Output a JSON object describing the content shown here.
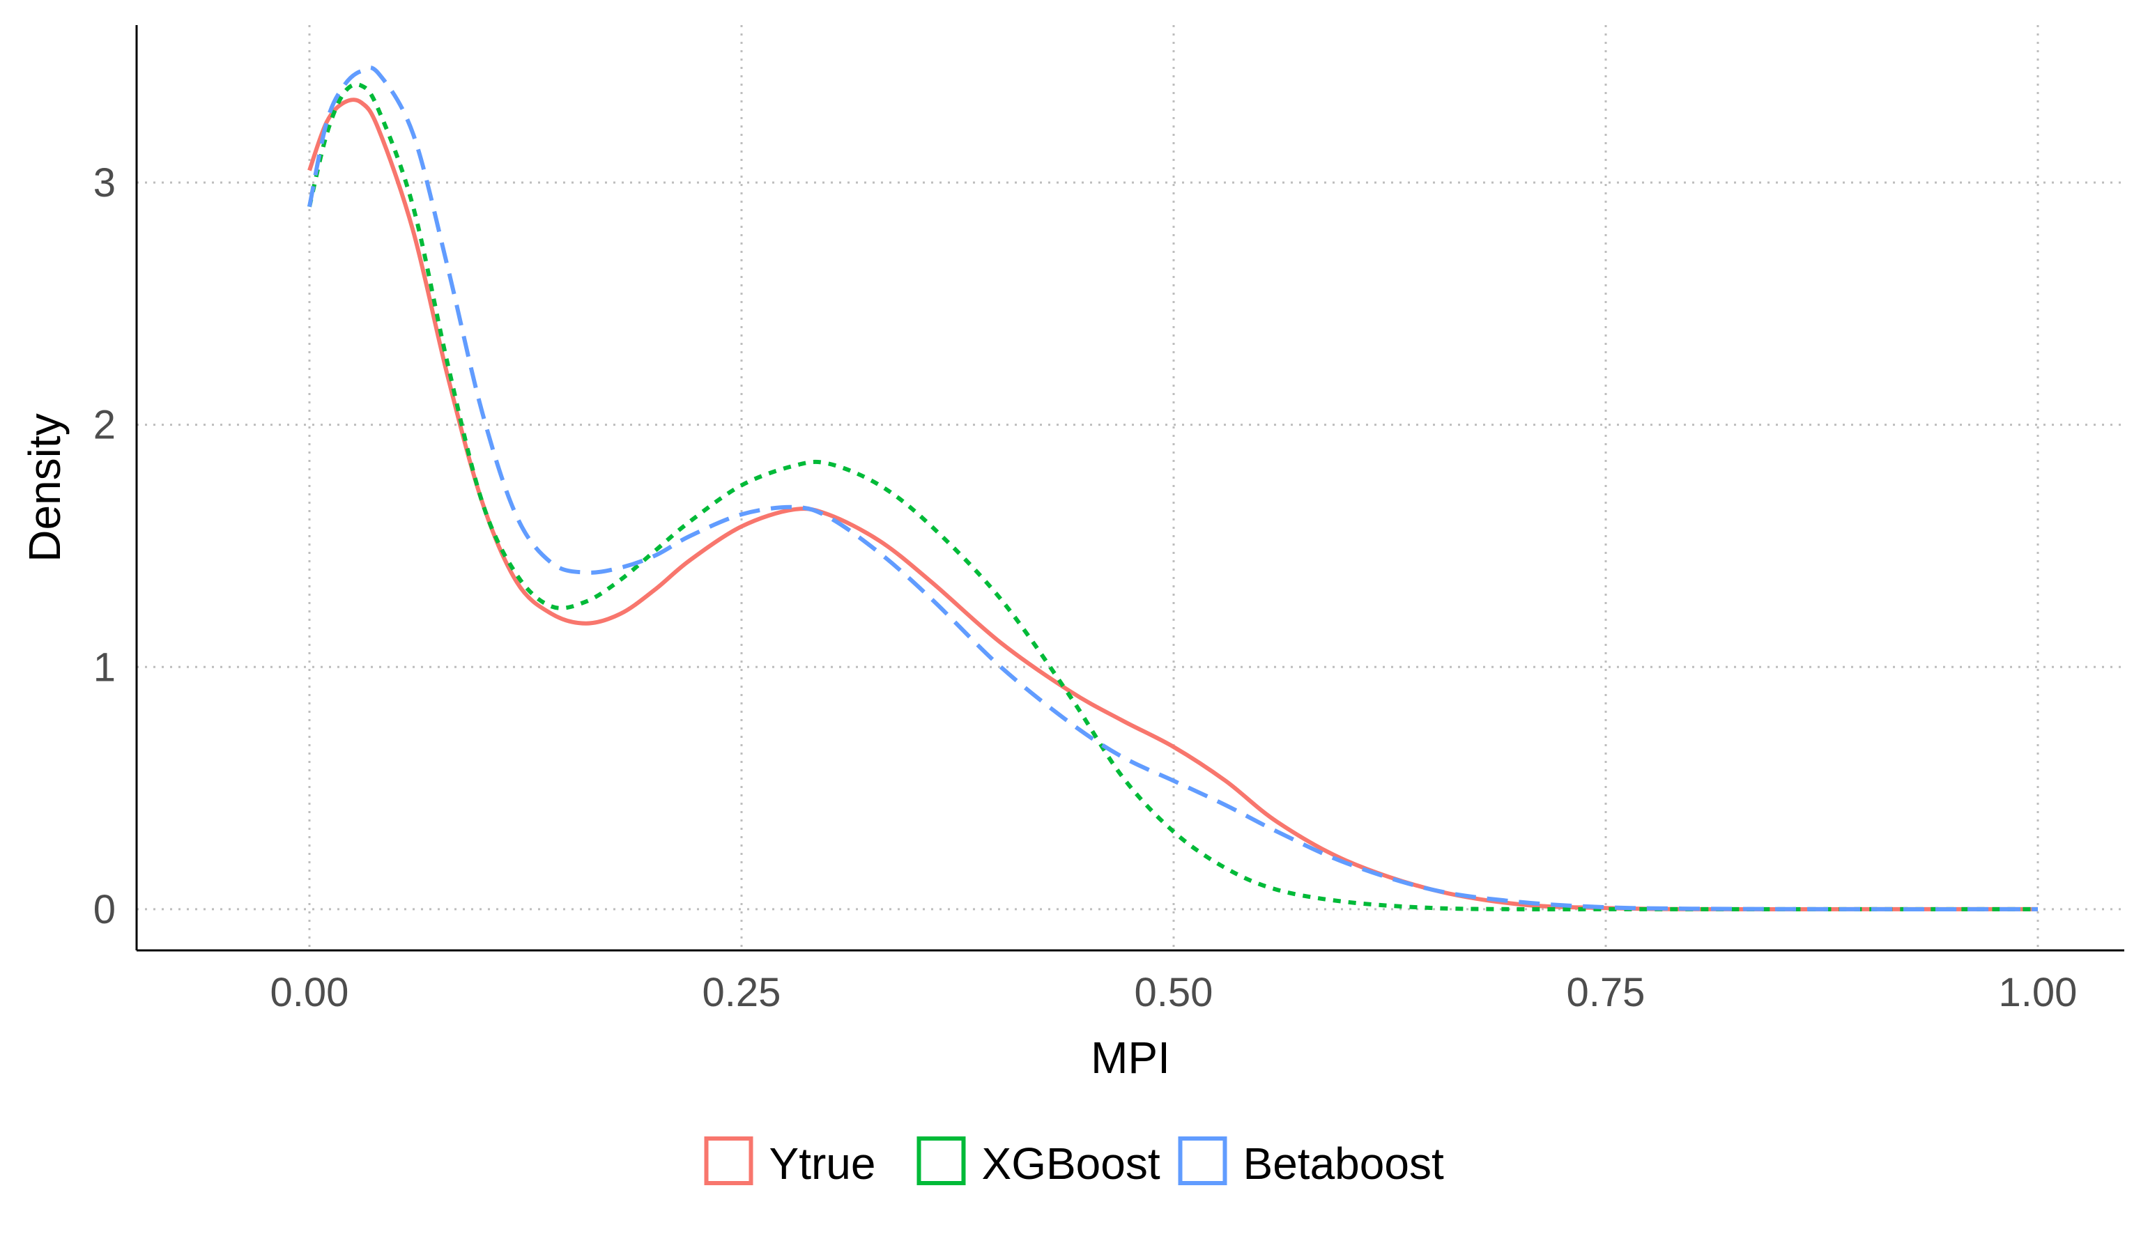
{
  "chart_data": {
    "type": "line",
    "title": "",
    "xlabel": "MPI",
    "ylabel": "Density",
    "xlim": [
      -0.1,
      1.05
    ],
    "ylim": [
      -0.17,
      3.65
    ],
    "xticks": [
      0.0,
      0.25,
      0.5,
      0.75,
      1.0
    ],
    "xtick_labels": [
      "0.00",
      "0.25",
      "0.50",
      "0.75",
      "1.00"
    ],
    "yticks": [
      0,
      1,
      2,
      3
    ],
    "ytick_labels": [
      "0",
      "1",
      "2",
      "3"
    ],
    "grid": true,
    "legend_position": "bottom",
    "x": [
      0.0,
      0.01,
      0.02,
      0.03,
      0.04,
      0.06,
      0.08,
      0.1,
      0.12,
      0.14,
      0.16,
      0.18,
      0.2,
      0.22,
      0.25,
      0.28,
      0.3,
      0.33,
      0.36,
      0.4,
      0.44,
      0.47,
      0.5,
      0.53,
      0.56,
      0.6,
      0.65,
      0.7,
      0.75,
      0.8,
      0.9,
      1.0
    ],
    "series": [
      {
        "name": "Ytrue",
        "color": "#F8766D",
        "dash": "solid",
        "values": [
          3.05,
          3.25,
          3.33,
          3.33,
          3.22,
          2.8,
          2.2,
          1.68,
          1.35,
          1.22,
          1.18,
          1.22,
          1.32,
          1.44,
          1.58,
          1.65,
          1.63,
          1.52,
          1.35,
          1.1,
          0.9,
          0.78,
          0.67,
          0.53,
          0.36,
          0.2,
          0.08,
          0.02,
          0.005,
          0.0,
          0.0,
          0.0
        ]
      },
      {
        "name": "XGBoost",
        "color": "#00BA38",
        "dash": "dotted",
        "values": [
          2.9,
          3.2,
          3.37,
          3.4,
          3.3,
          2.9,
          2.25,
          1.68,
          1.38,
          1.25,
          1.27,
          1.36,
          1.48,
          1.6,
          1.75,
          1.83,
          1.84,
          1.75,
          1.58,
          1.28,
          0.88,
          0.55,
          0.32,
          0.17,
          0.08,
          0.03,
          0.005,
          0.0,
          0.0,
          0.0,
          0.0,
          0.0
        ]
      },
      {
        "name": "Betaboost",
        "color": "#619CFF",
        "dash": "dashed",
        "values": [
          2.9,
          3.25,
          3.4,
          3.46,
          3.45,
          3.2,
          2.65,
          2.05,
          1.62,
          1.43,
          1.39,
          1.41,
          1.46,
          1.54,
          1.63,
          1.66,
          1.62,
          1.47,
          1.28,
          1.0,
          0.77,
          0.63,
          0.53,
          0.43,
          0.32,
          0.19,
          0.08,
          0.03,
          0.008,
          0.002,
          0.0,
          0.0
        ]
      }
    ]
  }
}
